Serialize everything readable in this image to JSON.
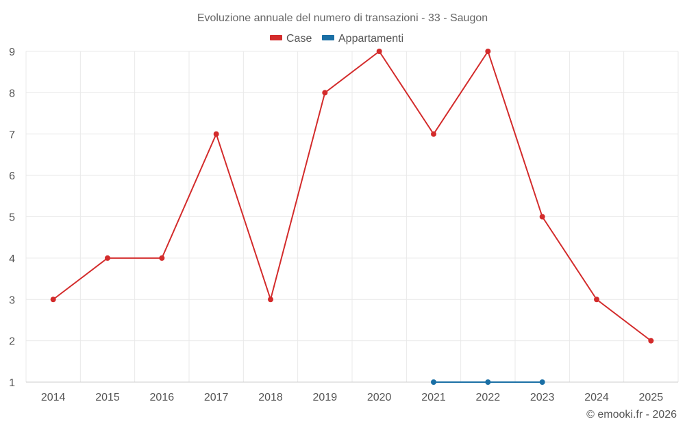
{
  "chart_data": {
    "type": "line",
    "title": "Evoluzione annuale del numero di transazioni - 33 - Saugon",
    "categories": [
      "2014",
      "2015",
      "2016",
      "2017",
      "2018",
      "2019",
      "2020",
      "2021",
      "2022",
      "2023",
      "2024",
      "2025"
    ],
    "ylim": [
      1,
      9
    ],
    "yticks": [
      1,
      2,
      3,
      4,
      5,
      6,
      7,
      8,
      9
    ],
    "grid": true,
    "legend_position": "top-center",
    "series": [
      {
        "name": "Case",
        "color": "#d32b2b",
        "values": [
          3,
          4,
          4,
          7,
          3,
          8,
          9,
          7,
          9,
          5,
          3,
          2
        ]
      },
      {
        "name": "Appartamenti",
        "color": "#1a6fa5",
        "values": [
          null,
          null,
          null,
          null,
          null,
          null,
          null,
          1,
          1,
          1,
          null,
          null
        ]
      }
    ],
    "xlabel": "",
    "ylabel": ""
  },
  "credit": "© emooki.fr - 2026"
}
